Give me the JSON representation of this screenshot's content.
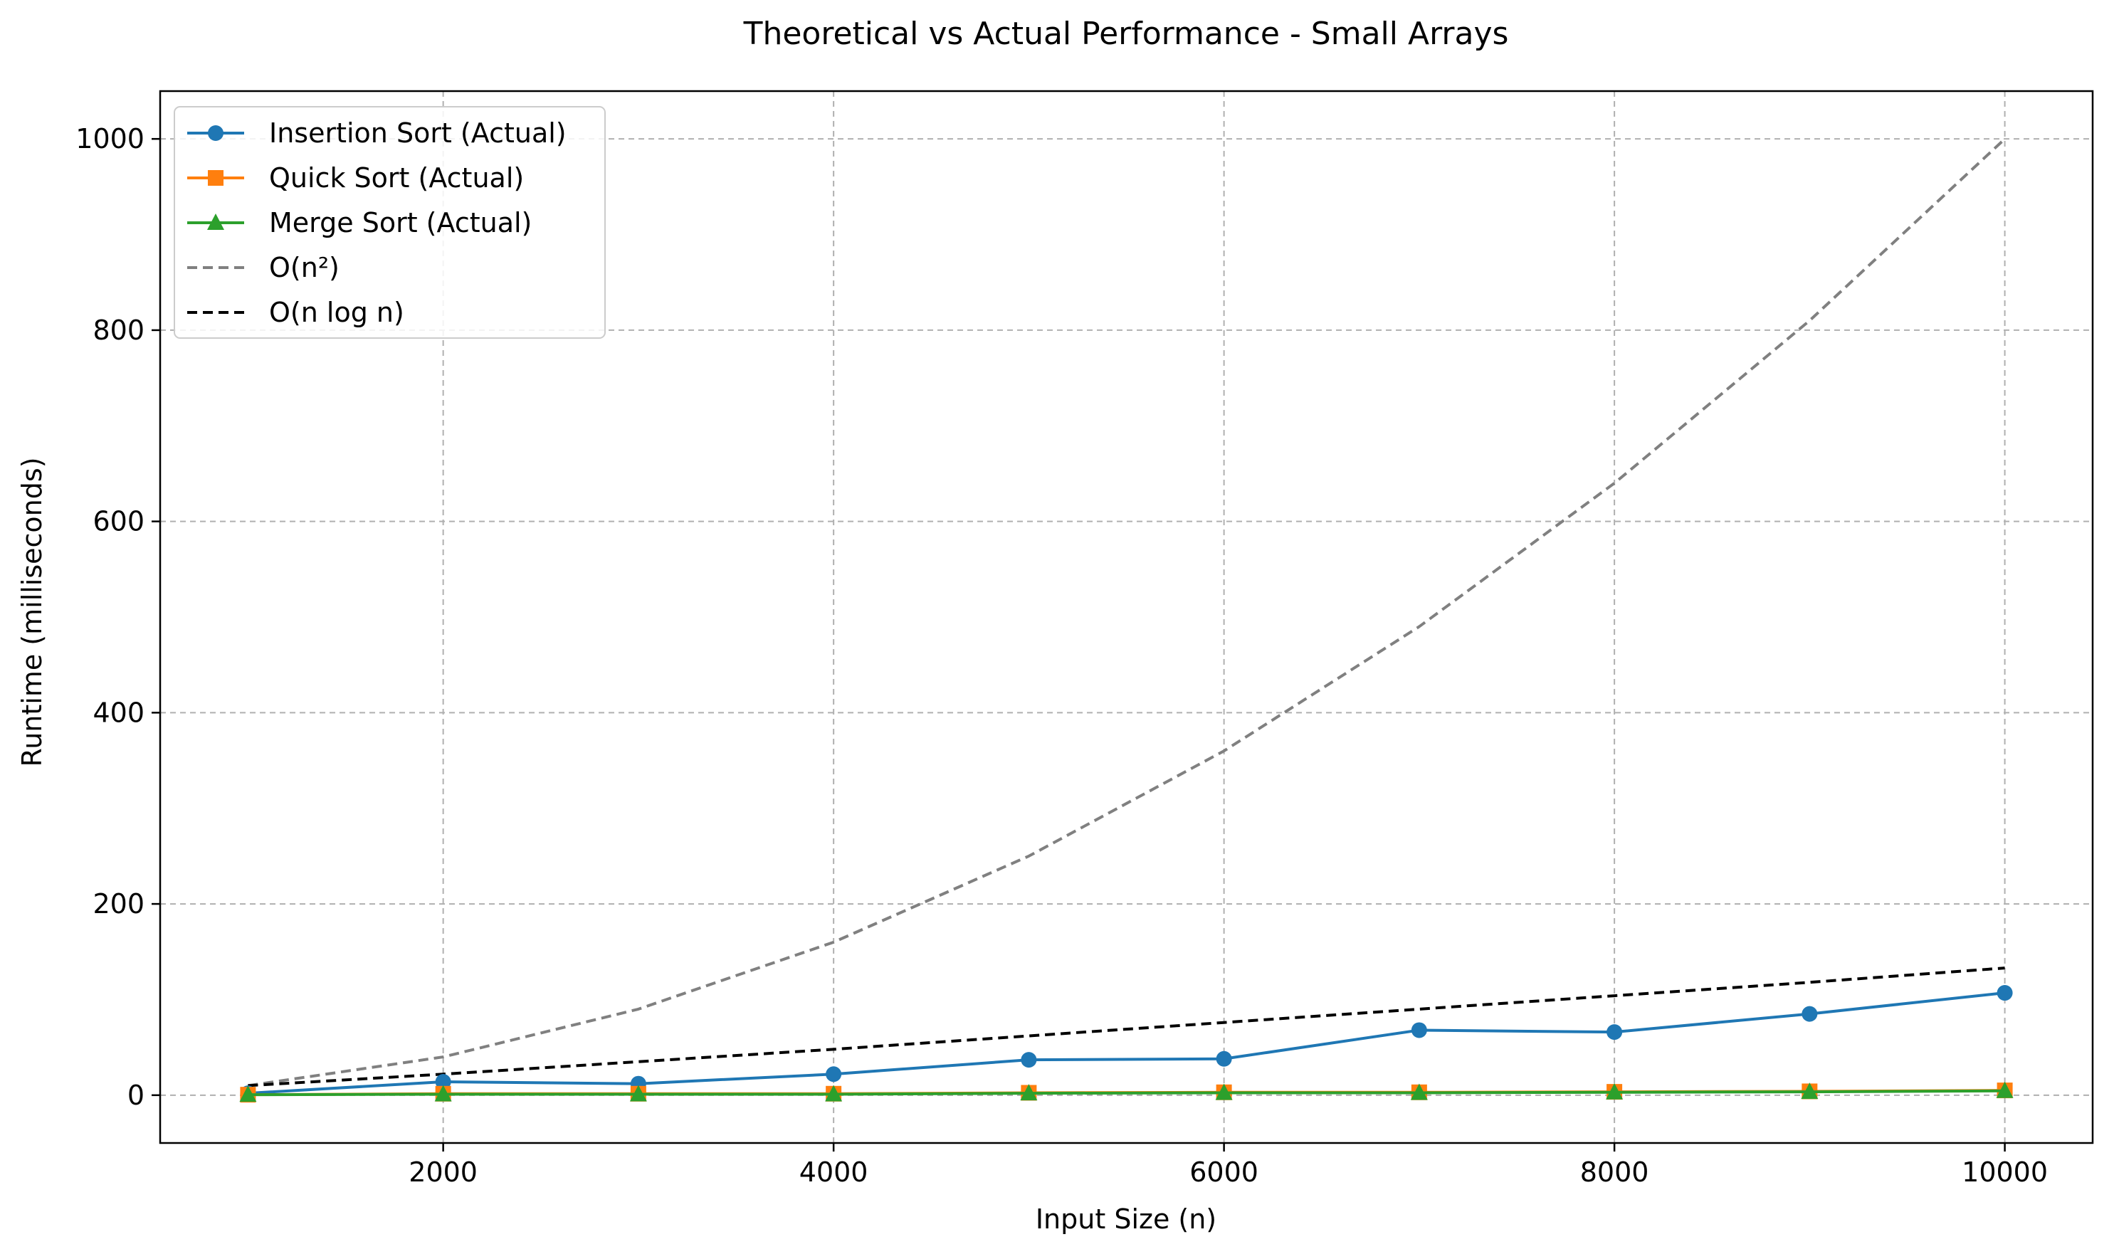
{
  "chart_data": {
    "type": "line",
    "title": "Theoretical vs Actual Performance - Small Arrays",
    "xlabel": "Input Size (n)",
    "ylabel": "Runtime (milliseconds)",
    "xlim": [
      550,
      10450
    ],
    "ylim": [
      -50,
      1050
    ],
    "xticks": [
      2000,
      4000,
      6000,
      8000,
      10000
    ],
    "yticks": [
      0,
      200,
      400,
      600,
      800,
      1000
    ],
    "grid": true,
    "legend_position": "top-left",
    "x": [
      1000,
      2000,
      3000,
      4000,
      5000,
      6000,
      7000,
      8000,
      9000,
      10000
    ],
    "series": [
      {
        "name": "Insertion Sort (Actual)",
        "values": [
          2,
          14,
          12,
          22,
          37,
          38,
          68,
          66,
          85,
          107
        ],
        "color": "#1f77b4",
        "marker": "circle",
        "dash": "solid"
      },
      {
        "name": "Quick Sort (Actual)",
        "values": [
          0.5,
          1.5,
          1.5,
          1.5,
          2.5,
          3,
          3,
          3.5,
          4,
          5
        ],
        "color": "#ff7f0e",
        "marker": "square",
        "dash": "solid"
      },
      {
        "name": "Merge Sort (Actual)",
        "values": [
          0.5,
          1,
          1,
          1,
          2,
          2.5,
          2.5,
          3,
          3.5,
          4.5
        ],
        "color": "#2ca02c",
        "marker": "triangle",
        "dash": "solid"
      },
      {
        "name": "O(n²)",
        "values": [
          10,
          40,
          90,
          160,
          250,
          360,
          490,
          640,
          810,
          1000
        ],
        "color": "#808080",
        "marker": "none",
        "dash": "dashed"
      },
      {
        "name": "O(n log n)",
        "values": [
          10,
          22,
          35,
          48,
          62,
          76,
          90,
          104,
          118,
          133
        ],
        "color": "#000000",
        "marker": "none",
        "dash": "dashed"
      }
    ]
  }
}
